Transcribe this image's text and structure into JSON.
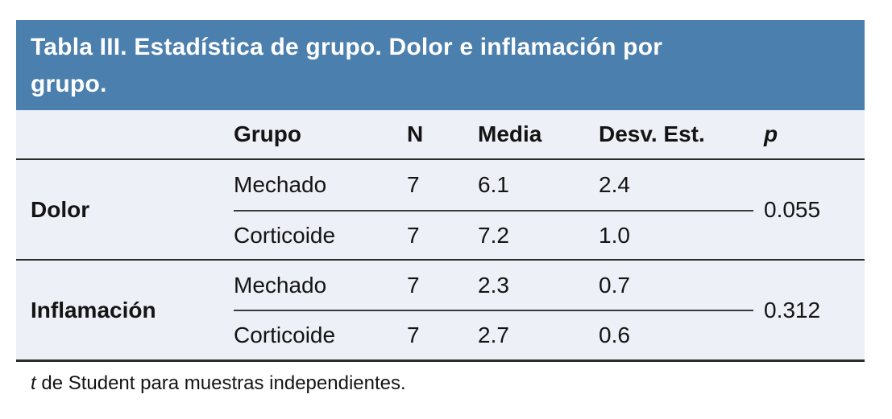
{
  "title_lines": [
    "Tabla III. Estadística de grupo. Dolor e inflamación por",
    "grupo."
  ],
  "columns": {
    "group": "Grupo",
    "n": "N",
    "media": "Media",
    "desv": "Desv. Est.",
    "p": "p"
  },
  "sections": [
    {
      "label": "Dolor",
      "p": "0.055",
      "rows": [
        {
          "grupo": "Mechado",
          "n": "7",
          "media": "6.1",
          "desv": "2.4"
        },
        {
          "grupo": "Corticoide",
          "n": "7",
          "media": "7.2",
          "desv": "1.0"
        }
      ]
    },
    {
      "label": "Inflamación",
      "p": "0.312",
      "rows": [
        {
          "grupo": "Mechado",
          "n": "7",
          "media": "2.3",
          "desv": "0.7"
        },
        {
          "grupo": "Corticoide",
          "n": "7",
          "media": "2.7",
          "desv": "0.6"
        }
      ]
    }
  ],
  "footnote": {
    "italic_term": "t",
    "text": " de Student para muestras independientes."
  },
  "colors": {
    "title_bg": "#4b7fad",
    "title_text": "#ffffff",
    "body_bg": "#edf0f6",
    "rule": "#2b2b2b",
    "text": "#141414"
  }
}
